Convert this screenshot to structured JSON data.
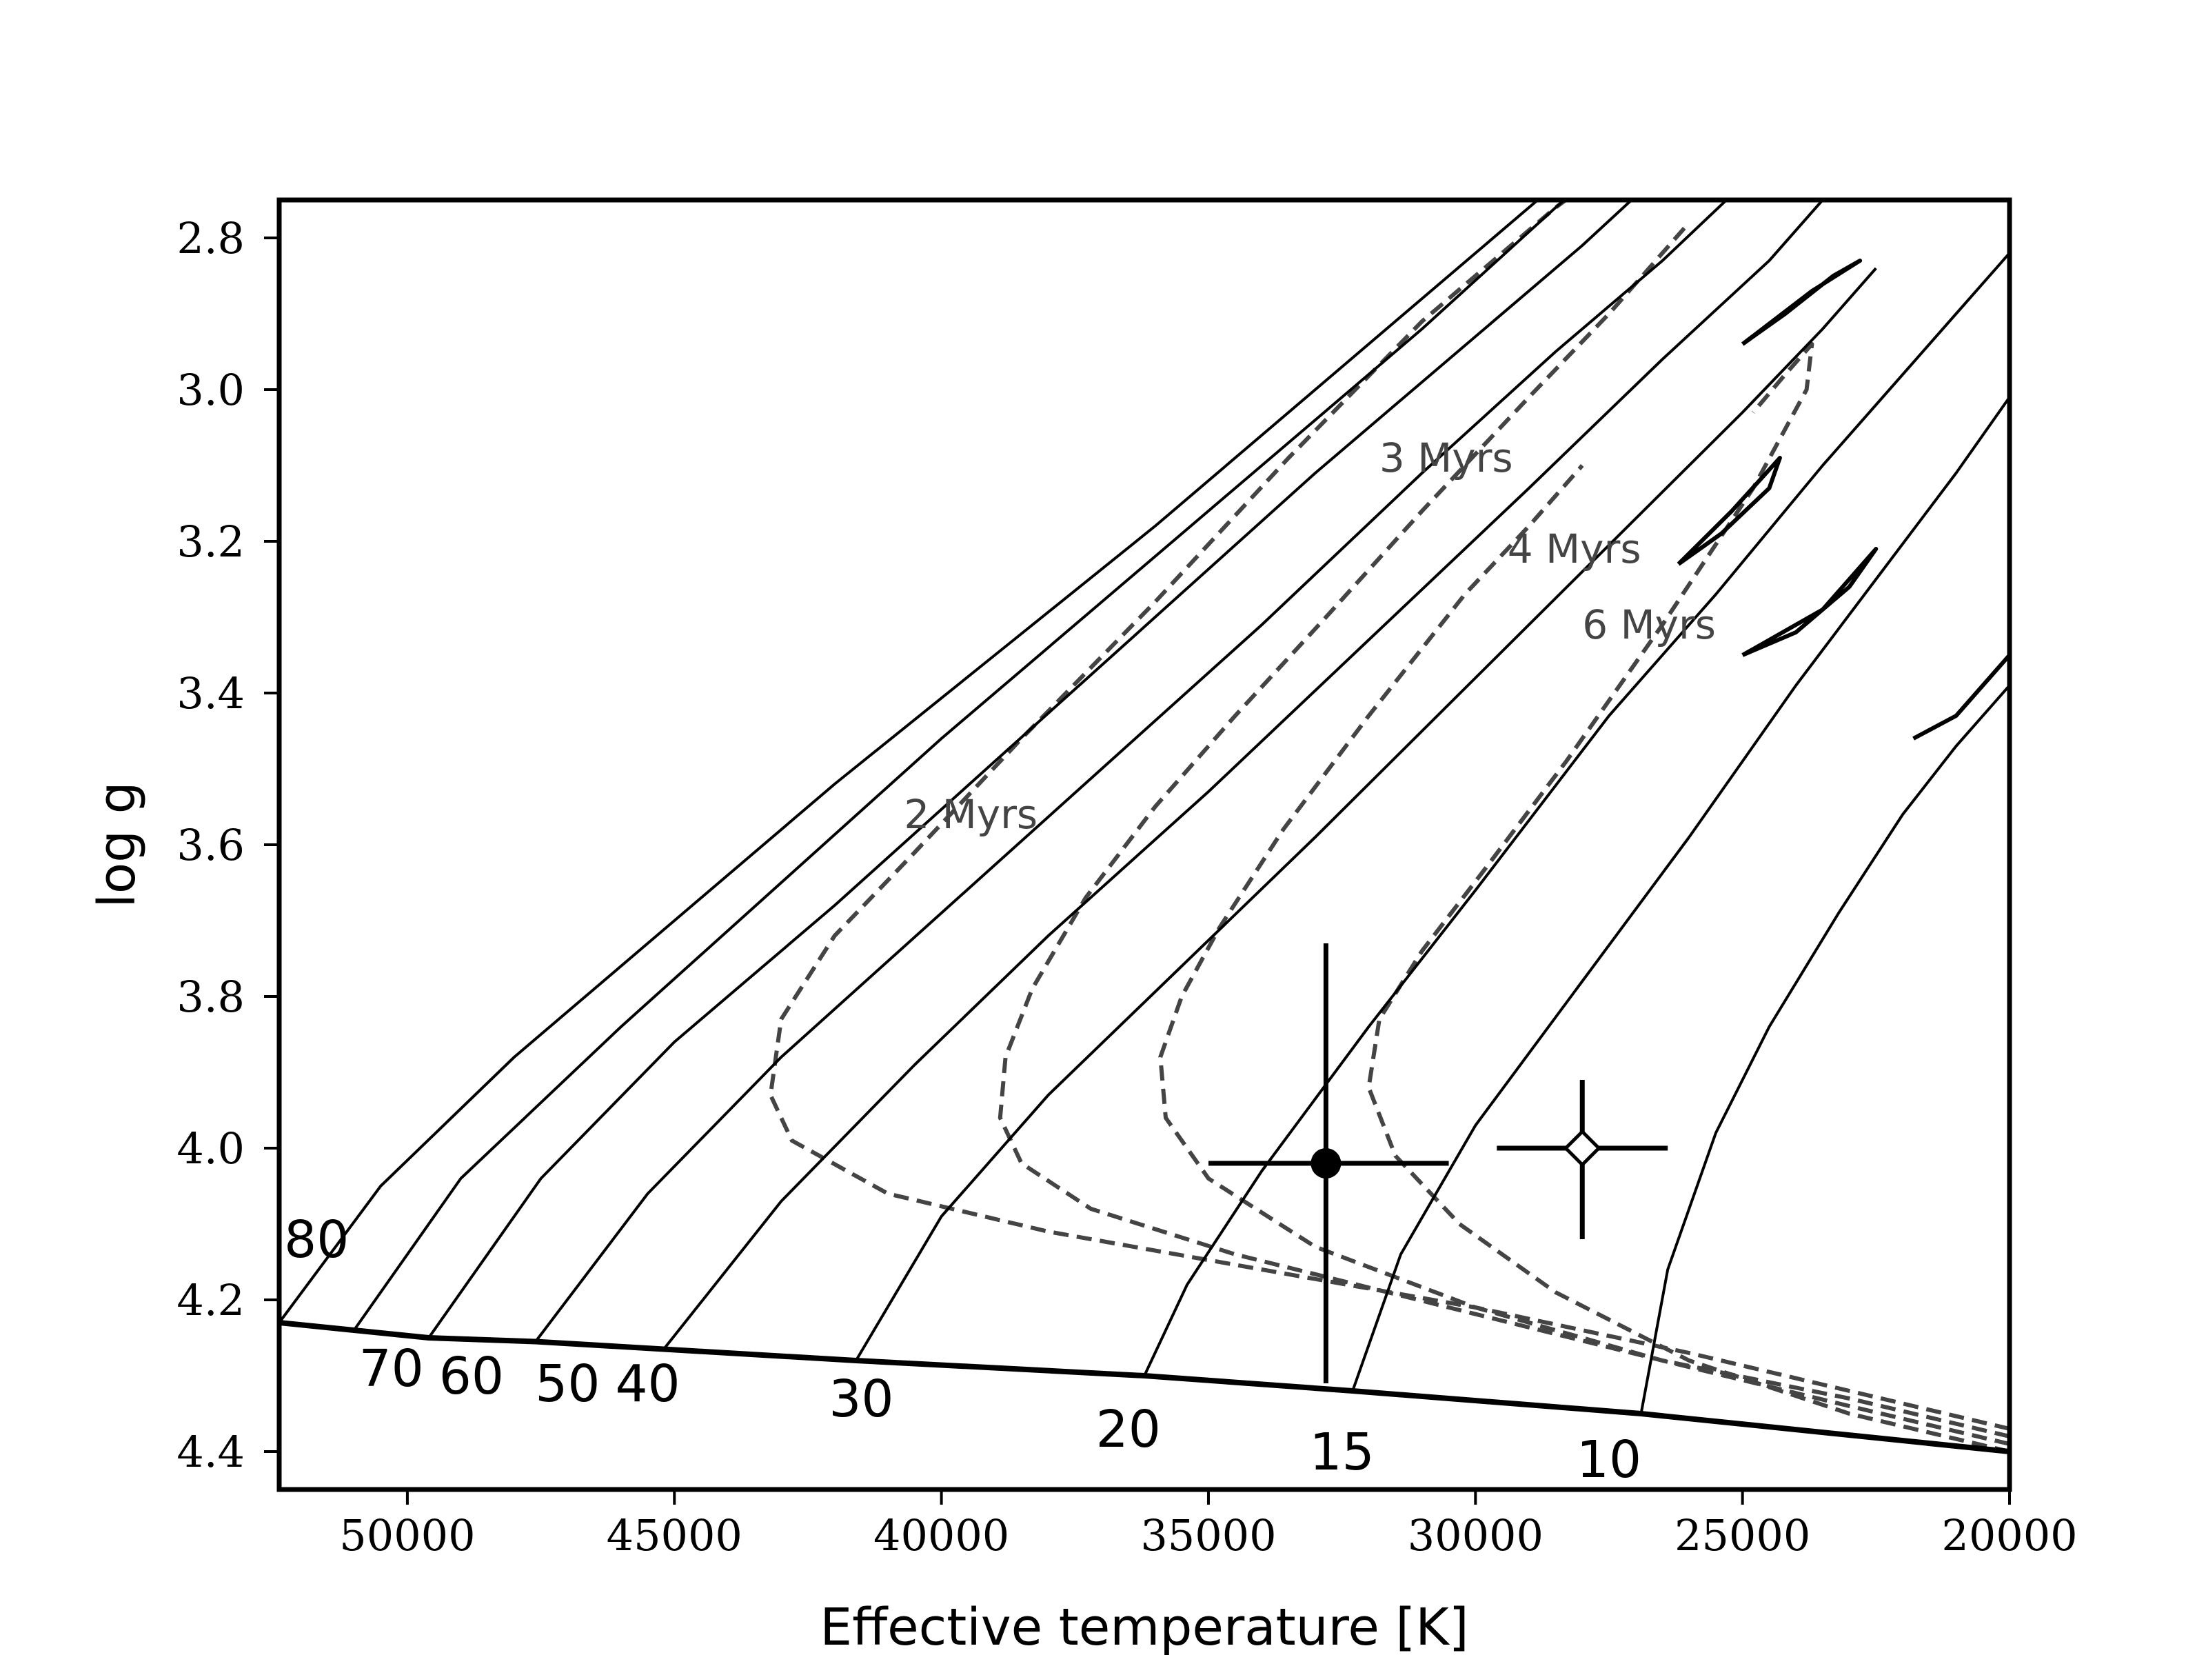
{
  "chart_data": {
    "type": "line",
    "title": "",
    "xlabel": "Effective temperature [K]",
    "ylabel": "log g",
    "xlim": [
      52400,
      20000
    ],
    "ylim": [
      4.45,
      2.75
    ],
    "x_inverted": true,
    "y_inverted": true,
    "grid": false,
    "xticks": [
      50000,
      45000,
      40000,
      35000,
      30000,
      25000,
      20000
    ],
    "yticks": [
      2.8,
      3.0,
      3.2,
      3.4,
      3.6,
      3.8,
      4.0,
      4.2,
      4.4
    ],
    "zams": {
      "x": [
        52400,
        51000,
        49600,
        47600,
        45200,
        41600,
        36200,
        32300,
        26900,
        20000
      ],
      "y": [
        4.23,
        4.24,
        4.25,
        4.255,
        4.265,
        4.28,
        4.3,
        4.32,
        4.35,
        4.4
      ]
    },
    "tracks": [
      {
        "mass_label": "80",
        "label_at": [
          51700,
          4.12
        ],
        "x": [
          52400,
          50500,
          48000,
          45000,
          42000,
          39000,
          36000,
          33000,
          30000,
          28000,
          26900
        ],
        "y": [
          4.23,
          4.05,
          3.88,
          3.7,
          3.52,
          3.35,
          3.18,
          3.0,
          2.82,
          2.7,
          2.64
        ]
      },
      {
        "mass_label": "70",
        "label_at": [
          50300,
          4.29
        ],
        "x": [
          51000,
          49000,
          46000,
          43000,
          40000,
          37000,
          34000,
          31000,
          28500,
          26500
        ],
        "y": [
          4.24,
          4.04,
          3.84,
          3.65,
          3.46,
          3.28,
          3.1,
          2.92,
          2.76,
          2.64
        ]
      },
      {
        "mass_label": "60",
        "label_at": [
          48800,
          4.3
        ],
        "x": [
          49600,
          47500,
          45000,
          42000,
          39000,
          36000,
          33000,
          30000,
          28000,
          26000
        ],
        "y": [
          4.25,
          4.04,
          3.86,
          3.68,
          3.49,
          3.3,
          3.11,
          2.93,
          2.81,
          2.68
        ]
      },
      {
        "mass_label": "50",
        "label_at": [
          47000,
          4.31
        ],
        "x": [
          47600,
          45500,
          43000,
          40000,
          37000,
          34000,
          31000,
          28500,
          26500,
          25000
        ],
        "y": [
          4.255,
          4.06,
          3.88,
          3.69,
          3.5,
          3.31,
          3.11,
          2.95,
          2.83,
          2.73
        ]
      },
      {
        "mass_label": "40",
        "label_at": [
          45500,
          4.31
        ],
        "x": [
          45200,
          43000,
          40500,
          38000,
          35000,
          32000,
          29000,
          26500,
          24500,
          23500
        ],
        "y": [
          4.265,
          4.07,
          3.89,
          3.72,
          3.53,
          3.33,
          3.13,
          2.96,
          2.83,
          2.75
        ]
      },
      {
        "mass_label": "30",
        "label_at": [
          41500,
          4.33
        ],
        "x": [
          41600,
          40000,
          38000,
          35500,
          33000,
          30000,
          27000,
          25000,
          23500,
          22500
        ],
        "y": [
          4.28,
          4.09,
          3.93,
          3.76,
          3.59,
          3.38,
          3.17,
          3.03,
          2.92,
          2.84
        ]
      },
      {
        "mass_label": "20",
        "label_at": [
          36500,
          4.37
        ],
        "x": [
          36200,
          35400,
          34000,
          32000,
          30000,
          27500,
          25500,
          23500,
          22000,
          21000,
          20000
        ],
        "y": [
          4.3,
          4.18,
          4.03,
          3.84,
          3.66,
          3.43,
          3.27,
          3.1,
          2.98,
          2.9,
          2.82
        ]
      },
      {
        "mass_label": "15",
        "label_at": [
          32500,
          4.4
        ],
        "x": [
          32300,
          31400,
          30000,
          28000,
          26000,
          24000,
          22500,
          21000,
          20000
        ],
        "y": [
          4.32,
          4.14,
          3.97,
          3.78,
          3.59,
          3.39,
          3.25,
          3.11,
          3.01
        ]
      },
      {
        "mass_label": "10",
        "label_at": [
          27500,
          4.41
        ],
        "x": [
          26900,
          26400,
          25500,
          24500,
          23200,
          22000,
          21000,
          20000
        ],
        "y": [
          4.35,
          4.16,
          3.98,
          3.84,
          3.69,
          3.56,
          3.47,
          3.39
        ]
      }
    ],
    "hooks": [
      {
        "x": [
          25000,
          24200,
          23300,
          22800,
          23700,
          25000
        ],
        "y": [
          2.94,
          2.9,
          2.85,
          2.83,
          2.87,
          2.94
        ]
      },
      {
        "x": [
          26200,
          25400,
          24500,
          24300,
          25200,
          26200
        ],
        "y": [
          3.23,
          3.19,
          3.13,
          3.09,
          3.16,
          3.23
        ]
      },
      {
        "x": [
          25000,
          24000,
          23000,
          22500,
          23500,
          25000
        ],
        "y": [
          3.35,
          3.32,
          3.26,
          3.21,
          3.29,
          3.35
        ]
      },
      {
        "x": [
          21800,
          21000,
          20000
        ],
        "y": [
          3.46,
          3.43,
          3.35
        ]
      }
    ],
    "isochrones": [
      {
        "label": "2 Myrs",
        "label_at": [
          40700,
          3.56
        ],
        "x": [
          20000,
          23000,
          26000,
          30000,
          34000,
          38000,
          41000,
          42800,
          43200,
          43000,
          42000,
          40500,
          38500,
          36000,
          33500,
          31000,
          28500,
          26200
        ],
        "y": [
          4.37,
          4.32,
          4.27,
          4.21,
          4.16,
          4.11,
          4.06,
          3.99,
          3.93,
          3.83,
          3.72,
          3.61,
          3.46,
          3.28,
          3.09,
          2.91,
          2.76,
          2.64
        ]
      },
      {
        "label": "3 Myrs",
        "label_at": [
          31800,
          3.09
        ],
        "x": [
          20000,
          23000,
          26500,
          30500,
          34500,
          37200,
          38500,
          38900,
          38800,
          38300,
          37300,
          36000,
          34500,
          32800,
          31000,
          29000,
          27500,
          26000
        ],
        "y": [
          4.38,
          4.33,
          4.28,
          4.21,
          4.14,
          4.08,
          4.02,
          3.96,
          3.88,
          3.79,
          3.67,
          3.55,
          3.43,
          3.3,
          3.16,
          3.01,
          2.9,
          2.78
        ]
      },
      {
        "label": "4 Myrs",
        "label_at": [
          29400,
          3.21
        ],
        "x": [
          20000,
          23000,
          26500,
          30000,
          33000,
          35000,
          35800,
          35900,
          35500,
          34800,
          33600,
          32000,
          30200,
          29000,
          28000
        ],
        "y": [
          4.39,
          4.34,
          4.28,
          4.21,
          4.13,
          4.04,
          3.96,
          3.88,
          3.8,
          3.71,
          3.58,
          3.43,
          3.27,
          3.18,
          3.1
        ]
      },
      {
        "label": "6 Myrs",
        "label_at": [
          28000,
          3.31
        ],
        "x": [
          20000,
          23000,
          26000,
          28500,
          30300,
          31500,
          32000,
          31800,
          31000,
          29800,
          28300,
          26500,
          24800,
          23800,
          23700,
          24200,
          24800
        ],
        "y": [
          4.4,
          4.35,
          4.28,
          4.19,
          4.1,
          4.01,
          3.92,
          3.83,
          3.74,
          3.63,
          3.49,
          3.31,
          3.13,
          3.0,
          2.94,
          2.98,
          3.03
        ]
      }
    ],
    "points": [
      {
        "marker": "filled-circle",
        "x": 32800,
        "y": 4.02,
        "x_err": [
          35000,
          30500
        ],
        "y_err": [
          3.73,
          4.31
        ]
      },
      {
        "marker": "open-diamond",
        "x": 28000,
        "y": 4.0,
        "x_err": [
          29600,
          26400
        ],
        "y_err": [
          3.91,
          4.12
        ]
      }
    ]
  }
}
